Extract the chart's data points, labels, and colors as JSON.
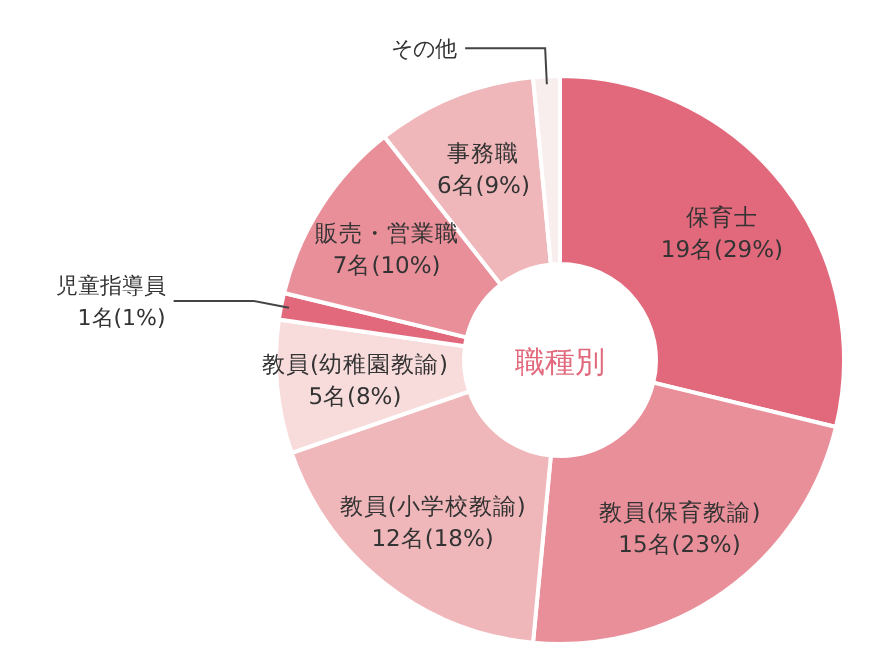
{
  "chart_data": {
    "type": "donut",
    "title": "職種別",
    "categories": [
      "保育士",
      "教員(保育教諭)",
      "教員(小学校教諭)",
      "教員(幼稚園教諭)",
      "児童指導員",
      "販売・営業職",
      "事務職",
      "その他"
    ],
    "values": [
      19,
      15,
      12,
      5,
      1,
      7,
      6,
      1
    ],
    "value_labels": [
      "19名(29%)",
      "15名(23%)",
      "12名(18%)",
      "5名(8%)",
      "1名(1%)",
      "7名(10%)",
      "6名(9%)",
      null
    ],
    "colors": [
      "#e2697c",
      "#e98f9a",
      "#f0b7ba",
      "#f8dcdc",
      "#e2697c",
      "#e98f9a",
      "#f0b7ba",
      "#f8eeee"
    ]
  }
}
